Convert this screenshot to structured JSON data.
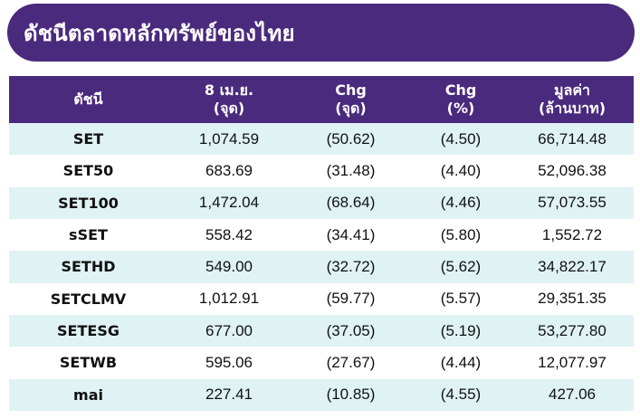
{
  "title": "ดัชนีตลาดหลักทรัพย์ของไทย",
  "headers": [
    {
      "line1": "ดัชนี",
      "line2": ""
    },
    {
      "line1": "8 เม.ย.",
      "line2": "(จุด)"
    },
    {
      "line1": "Chg",
      "line2": "(จุด)"
    },
    {
      "line1": "Chg",
      "line2": "(%)"
    },
    {
      "line1": "มูลค่า",
      "line2": "(ล้านบาท)"
    }
  ],
  "rows": [
    {
      "index": "SET",
      "close": "1,074.59",
      "chg_pts": "(50.62)",
      "chg_pct": "(4.50)",
      "value": "66,714.48"
    },
    {
      "index": "SET50",
      "close": "683.69",
      "chg_pts": "(31.48)",
      "chg_pct": "(4.40)",
      "value": "52,096.38"
    },
    {
      "index": "SET100",
      "close": "1,472.04",
      "chg_pts": "(68.64)",
      "chg_pct": "(4.46)",
      "value": "57,073.55"
    },
    {
      "index": "sSET",
      "close": "558.42",
      "chg_pts": "(34.41)",
      "chg_pct": "(5.80)",
      "value": "1,552.72"
    },
    {
      "index": "SETHD",
      "close": "549.00",
      "chg_pts": "(32.72)",
      "chg_pct": "(5.62)",
      "value": "34,822.17"
    },
    {
      "index": "SETCLMV",
      "close": "1,012.91",
      "chg_pts": "(59.77)",
      "chg_pct": "(5.57)",
      "value": "29,351.35"
    },
    {
      "index": "SETESG",
      "close": "677.00",
      "chg_pts": "(37.05)",
      "chg_pct": "(5.19)",
      "value": "53,277.80"
    },
    {
      "index": "SETWB",
      "close": "595.06",
      "chg_pts": "(27.67)",
      "chg_pct": "(4.44)",
      "value": "12,077.97"
    },
    {
      "index": "mai",
      "close": "227.41",
      "chg_pts": "(10.85)",
      "chg_pct": "(4.55)",
      "value": "427.06"
    }
  ],
  "colors": {
    "header_bg": "#4a2a7d",
    "stripe_bg": "#dff2f4",
    "header_text": "#ffffff"
  }
}
